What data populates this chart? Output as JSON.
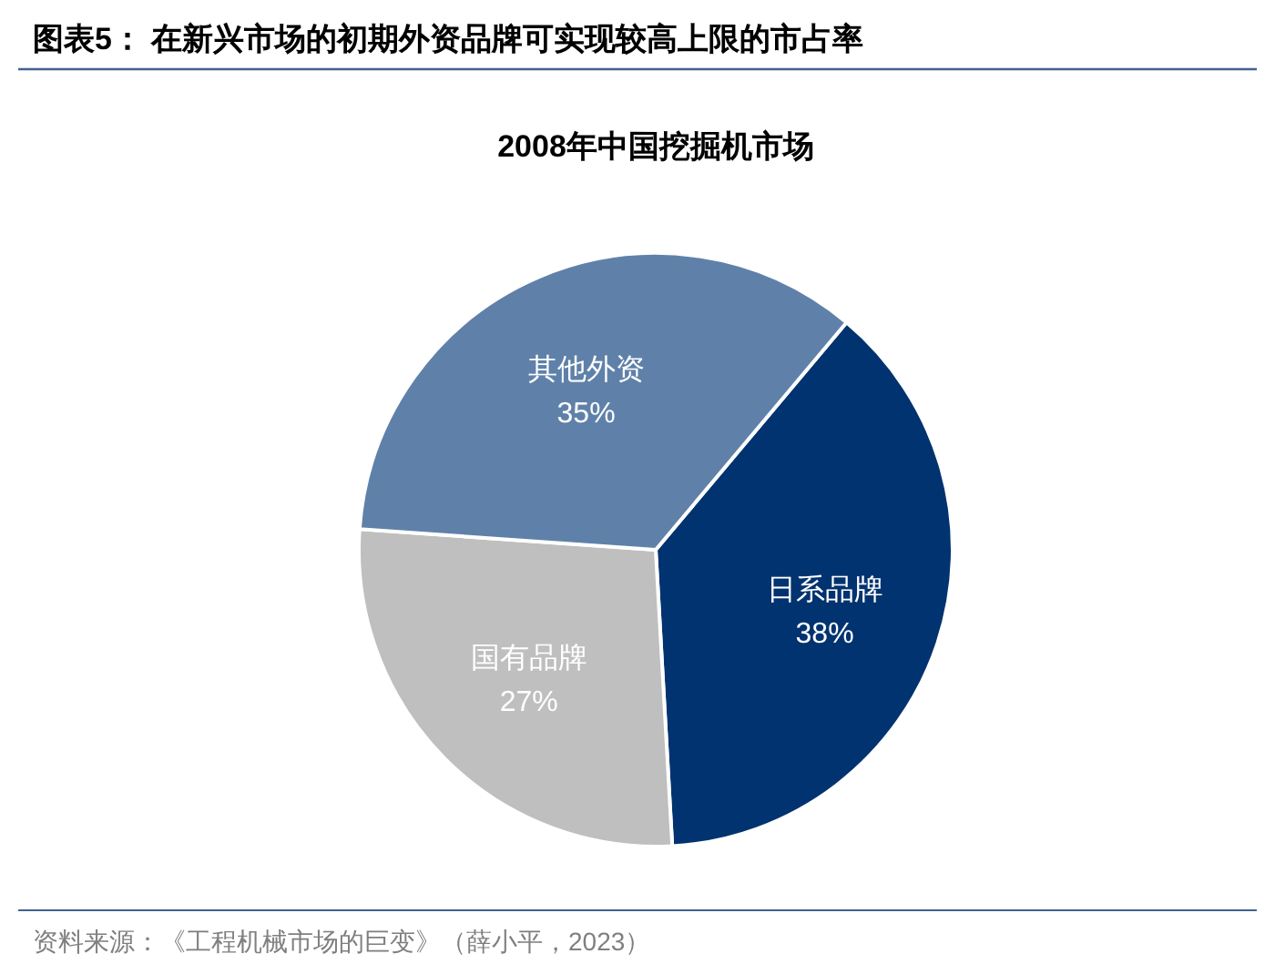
{
  "chart_data": {
    "type": "pie",
    "title": "图表5：  在新兴市场的初期外资品牌可实现较高上限的市占率",
    "subtitle": "2008年中国挖掘机市场",
    "categories": [
      "日系品牌",
      "国有品牌",
      "其他外资"
    ],
    "values": [
      38,
      27,
      35
    ],
    "colors": [
      "#00336f",
      "#bfbfbf",
      "#5f81a9"
    ],
    "value_labels": [
      "38%",
      "27%",
      "35%"
    ],
    "annotations": [
      "资料来源：《工程机械市场的巨变》（薛小平，2023）"
    ]
  }
}
